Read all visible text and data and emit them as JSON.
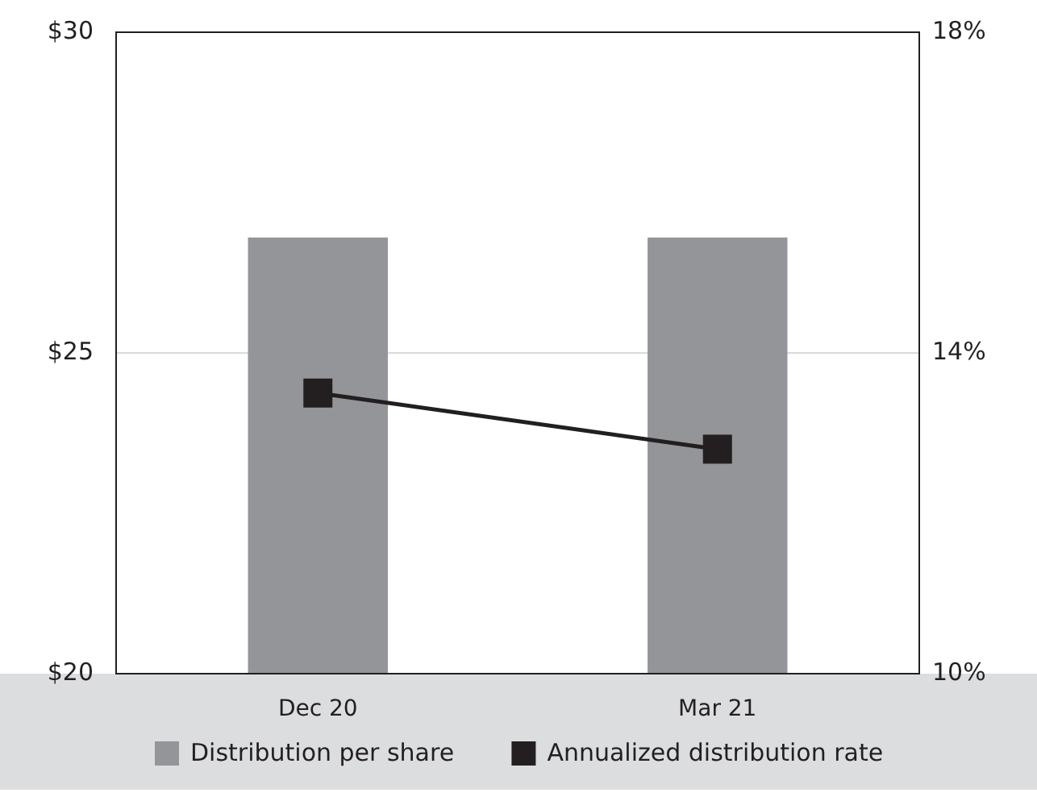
{
  "chart_data": {
    "type": "bar",
    "categories": [
      "Dec 20",
      "Mar 21"
    ],
    "series": [
      {
        "name": "Distribution per share",
        "color": "#939598",
        "values": [
          26.8,
          26.8
        ]
      },
      {
        "name": "Annualized distribution rate",
        "type": "line",
        "axis": "y2",
        "color": "#231f20",
        "values": [
          13.5,
          12.8
        ]
      }
    ],
    "ylim": [
      20,
      30
    ],
    "yticks": [
      {
        "value": 20,
        "label": "$20"
      },
      {
        "value": 25,
        "label": "$25"
      },
      {
        "value": 30,
        "label": "$30"
      }
    ],
    "y2lim": [
      10,
      18
    ],
    "y2ticks": [
      {
        "value": 10,
        "label": "10%"
      },
      {
        "value": 14,
        "label": "14%"
      },
      {
        "value": 18,
        "label": "18%"
      }
    ],
    "grid": "y",
    "legend": "bottom",
    "marker": "square",
    "line_style": "solid"
  }
}
